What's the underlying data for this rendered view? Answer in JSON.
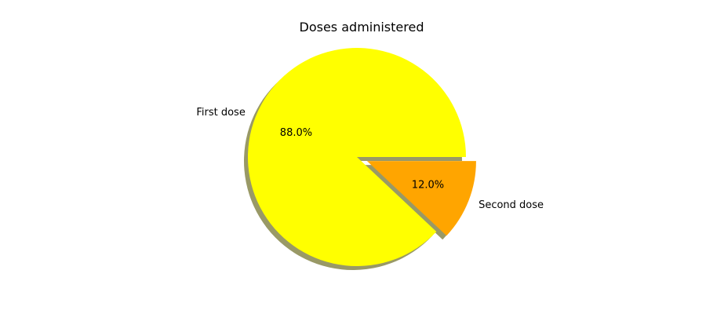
{
  "chart_data": {
    "type": "pie",
    "title": "Doses administered",
    "slices": [
      {
        "label": "First dose",
        "value": 88.0,
        "pct_label": "88.0%",
        "color": "#ffff00",
        "explode": 0.0
      },
      {
        "label": "Second dose",
        "value": 12.0,
        "pct_label": "12.0%",
        "color": "#ffa500",
        "explode": 0.1
      }
    ],
    "start_angle_deg": 0,
    "direction": "counterclockwise",
    "shadow": true,
    "shadow_color": "#999966",
    "legend": "none"
  }
}
